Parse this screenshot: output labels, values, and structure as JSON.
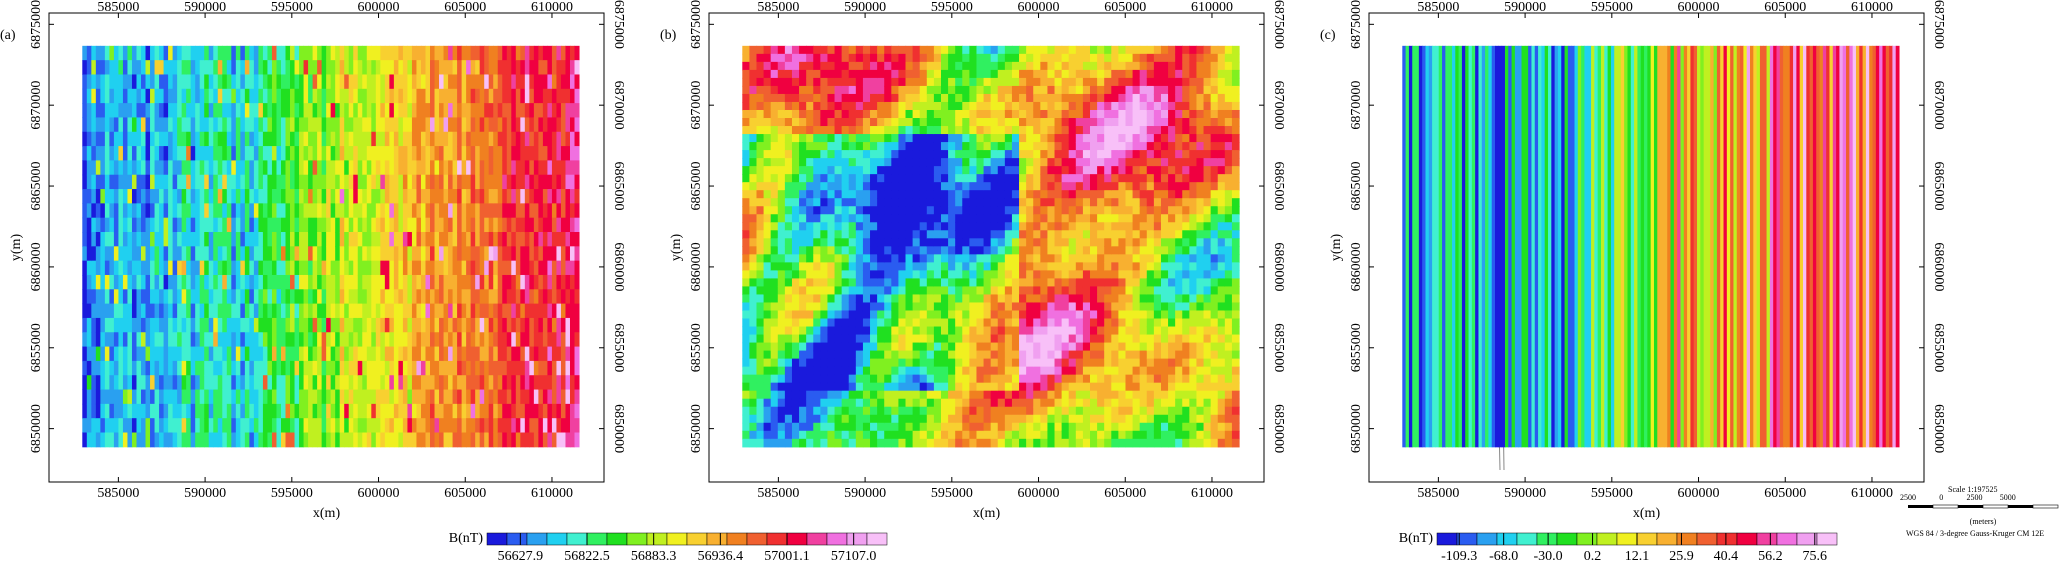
{
  "chart_data": [
    {
      "type": "heatmap",
      "label": "(a)",
      "xlabel": "x(m)",
      "ylabel": "y(m)",
      "xlim": [
        581000,
        613000
      ],
      "xticks": [
        585000,
        590000,
        595000,
        600000,
        605000,
        610000
      ],
      "ylim": [
        6846700,
        6875700
      ],
      "yticks": [
        6850000,
        6855000,
        6860000,
        6865000,
        6870000,
        6875000
      ],
      "colorbar": {
        "title": "B(nT)",
        "colors": [
          "#1a1adc",
          "#2a5cf0",
          "#2aa0f0",
          "#20d0f0",
          "#40f0d0",
          "#30f060",
          "#20e020",
          "#80f020",
          "#c0f020",
          "#f0f020",
          "#f8d030",
          "#f8b030",
          "#f08020",
          "#f06030",
          "#f03030",
          "#f00040",
          "#f040a0",
          "#f070e0",
          "#f0a0f0",
          "#f8c0f8"
        ],
        "ticks": [
          56627.9,
          56822.5,
          56883.3,
          56936.4,
          57001.1,
          {
            "value": 57107,
            "label": "57107.0"
          }
        ]
      }
    },
    {
      "type": "heatmap",
      "label": "(b)",
      "xlabel": "x(m)",
      "ylabel": "y(m)",
      "xlim": [
        581000,
        613000
      ],
      "xticks": [
        585000,
        590000,
        595000,
        600000,
        605000,
        610000
      ],
      "ylim": [
        6846700,
        6875700
      ],
      "yticks": [
        6850000,
        6855000,
        6860000,
        6865000,
        6870000,
        6875000
      ]
    },
    {
      "type": "heatmap",
      "label": "(c)",
      "xlabel": "x(m)",
      "ylabel": "y(m)",
      "xlim": [
        581000,
        613000
      ],
      "xticks": [
        585000,
        590000,
        595000,
        600000,
        605000,
        610000
      ],
      "ylim": [
        6846700,
        6875700
      ],
      "yticks": [
        6850000,
        6855000,
        6860000,
        6865000,
        6870000,
        6875000
      ],
      "colorbar": {
        "title": "B(nT)",
        "colors": [
          "#1a1adc",
          "#2a5cf0",
          "#2aa0f0",
          "#20d0f0",
          "#40f0d0",
          "#30f060",
          "#20e020",
          "#80f020",
          "#c0f020",
          "#f0f020",
          "#f8d030",
          "#f8b030",
          "#f08020",
          "#f06030",
          "#f03030",
          "#f00040",
          "#f040a0",
          "#f070e0",
          "#f0a0f0",
          "#f8c0f8"
        ],
        "ticks": [
          -109.3,
          {
            "value": -68,
            "label": "-68.0"
          },
          {
            "value": -30,
            "label": "-30.0"
          },
          0.2,
          12.1,
          25.9,
          40.4,
          56.2,
          75.6
        ]
      }
    }
  ],
  "map_info": {
    "scale": "Scale 1:197525",
    "scale_ticks": [
      "2500",
      "0",
      "2500",
      "5000"
    ],
    "units": "(meters)",
    "projection": "WGS 84 / 3-degree Gauss-Kruger CM 12E"
  }
}
